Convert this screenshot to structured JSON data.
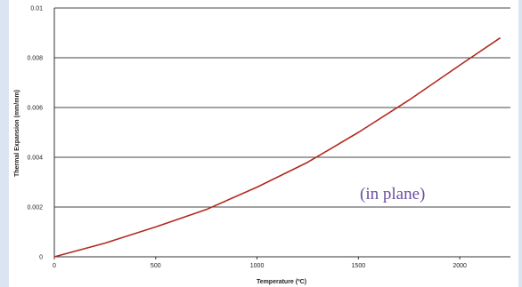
{
  "chart_data": {
    "type": "line",
    "title": "",
    "xlabel": "Temperature (ºC)",
    "ylabel": "Thermal Expansion (mm/mm)",
    "xlim": [
      0,
      2250
    ],
    "ylim": [
      0,
      0.01
    ],
    "x_ticks": [
      0,
      500,
      1000,
      1500,
      2000
    ],
    "x_tick_labels": [
      "0",
      "500",
      "1000",
      "1500",
      "2000"
    ],
    "y_ticks": [
      0,
      0.002,
      0.004,
      0.006,
      0.008,
      0.01
    ],
    "y_tick_labels": [
      "0",
      "0.002",
      "0.004",
      "0.006",
      "0.008",
      "0.01"
    ],
    "grid": true,
    "annotation": "(in plane)",
    "series": [
      {
        "color": "#b22a1e",
        "x": [
          0,
          250,
          500,
          750,
          1000,
          1250,
          1500,
          1750,
          2000,
          2200
        ],
        "y": [
          0,
          0.00055,
          0.0012,
          0.0019,
          0.0028,
          0.0038,
          0.005,
          0.0063,
          0.0077,
          0.0088
        ]
      }
    ]
  },
  "colors": {
    "background": "#dbe5f1",
    "plot_area": "#ffffff",
    "gridline": "#444444",
    "curve": "#b22a1e",
    "annotation": "#6a4fa0"
  }
}
